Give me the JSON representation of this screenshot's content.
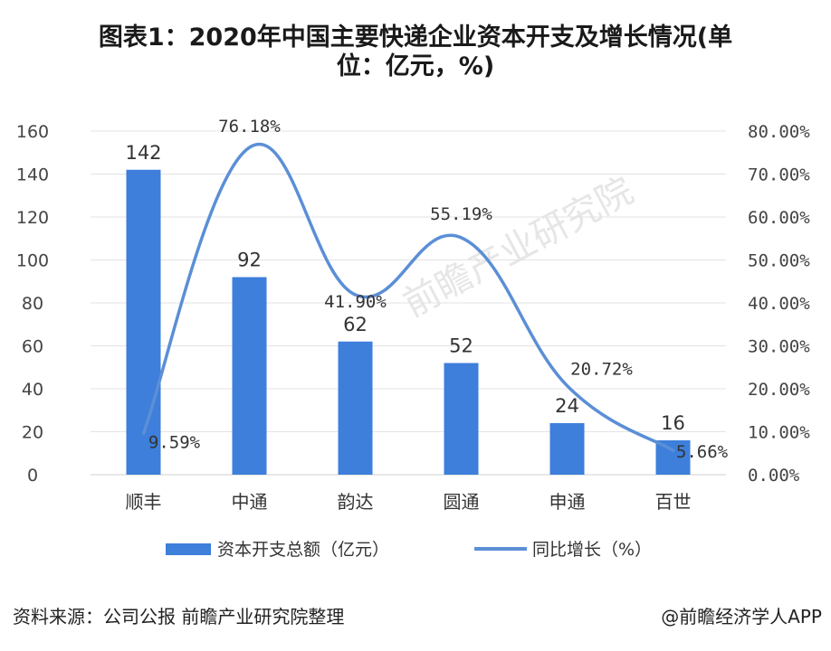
{
  "title": {
    "line1": "图表1：2020年中国主要快递企业资本开支及增长情况(单",
    "line2": "位：亿元，%)"
  },
  "chart_data": {
    "type": "bar",
    "categories": [
      "顺丰",
      "中通",
      "韵达",
      "圆通",
      "申通",
      "百世"
    ],
    "series": [
      {
        "name": "资本开支总额（亿元）",
        "type": "bar",
        "axis": "left",
        "color": "#3d7fdb",
        "values": [
          142,
          92,
          62,
          52,
          24,
          16
        ],
        "labels": [
          "142",
          "92",
          "62",
          "52",
          "24",
          "16"
        ]
      },
      {
        "name": "同比增长（%）",
        "type": "line",
        "smooth": true,
        "axis": "right",
        "color": "#5b8fd6",
        "values": [
          9.59,
          76.18,
          41.9,
          55.19,
          20.72,
          5.66
        ],
        "labels": [
          "9.59%",
          "76.18%",
          "41.90%",
          "55.19%",
          "20.72%",
          "5.66%"
        ]
      }
    ],
    "y_left": {
      "ylim": [
        0,
        160
      ],
      "ticks": [
        "0",
        "20",
        "40",
        "60",
        "80",
        "100",
        "120",
        "140",
        "160"
      ]
    },
    "y_right": {
      "ylim": [
        0,
        80
      ],
      "ticks": [
        "0.00%",
        "10.00%",
        "20.00%",
        "30.00%",
        "40.00%",
        "50.00%",
        "60.00%",
        "70.00%",
        "80.00%"
      ]
    },
    "grid": "horizontal",
    "legend": "bottom"
  },
  "watermark": "前瞻产业研究院",
  "footer": {
    "source": "资料来源：公司公报 前瞻产业研究院整理",
    "brand": "@前瞻经济学人APP"
  }
}
